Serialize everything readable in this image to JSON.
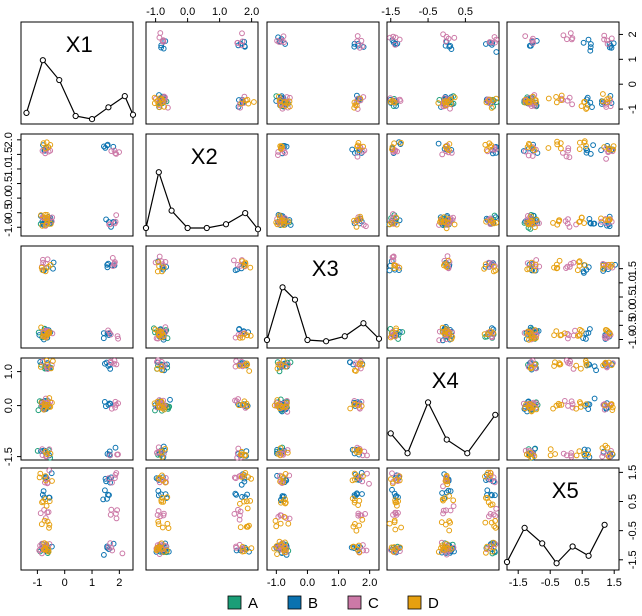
{
  "chart_data": {
    "type": "scatter",
    "layout": "pairs-matrix",
    "variables": [
      "X1",
      "X2",
      "X3",
      "X4",
      "X5"
    ],
    "ranges": {
      "X1": [
        -1.6,
        2.5
      ],
      "X2": [
        -1.3,
        2.2
      ],
      "X3": [
        -1.3,
        2.3
      ],
      "X4": [
        -1.6,
        1.4
      ],
      "X5": [
        -1.85,
        1.65
      ]
    },
    "cluster_centers": {
      "X1": {
        "A": [
          -0.7
        ],
        "B": [
          -0.7,
          1.6
        ],
        "C": [
          -0.7,
          1.8
        ],
        "D": [
          -0.7
        ]
      },
      "X2": {
        "A": [
          -0.8
        ],
        "B": [
          -0.8,
          1.7
        ],
        "C": [
          -0.8,
          1.6
        ],
        "D": [
          -0.8,
          1.8
        ]
      },
      "X3": {
        "A": [
          -0.8
        ],
        "B": [
          -0.8,
          1.6
        ],
        "C": [
          -0.8,
          1.7
        ],
        "D": [
          -0.8,
          1.6
        ]
      },
      "X4": {
        "A": [
          0.0,
          1.2,
          -1.4
        ],
        "B": [
          0.0,
          1.2,
          -1.4
        ],
        "C": [
          0.0,
          1.2,
          -1.4
        ],
        "D": [
          0.0,
          1.2,
          -1.4
        ]
      },
      "X5": {
        "A": [
          -1.1
        ],
        "B": [
          -1.1,
          0.7,
          1.3
        ],
        "C": [
          -1.1,
          0.1,
          1.3
        ],
        "D": [
          -1.1,
          -0.3,
          0.5,
          1.3
        ]
      }
    },
    "densities": {
      "X1": [
        [
          -1.4,
          0.05
        ],
        [
          -0.8,
          0.9
        ],
        [
          -0.2,
          0.58
        ],
        [
          0.4,
          0.0
        ],
        [
          1.0,
          -0.05
        ],
        [
          1.6,
          0.14
        ],
        [
          2.2,
          0.32
        ],
        [
          2.5,
          0.02
        ]
      ],
      "X2": [
        [
          -1.3,
          0.0
        ],
        [
          -0.9,
          0.9
        ],
        [
          -0.5,
          0.28
        ],
        [
          0.0,
          0.0
        ],
        [
          0.6,
          0.0
        ],
        [
          1.2,
          0.06
        ],
        [
          1.8,
          0.24
        ],
        [
          2.2,
          -0.02
        ]
      ],
      "X3": [
        [
          -1.3,
          0.0
        ],
        [
          -0.8,
          0.85
        ],
        [
          -0.4,
          0.65
        ],
        [
          0.0,
          0.0
        ],
        [
          0.6,
          -0.02
        ],
        [
          1.2,
          0.06
        ],
        [
          1.8,
          0.27
        ],
        [
          2.3,
          0.02
        ]
      ],
      "X4": [
        [
          -1.5,
          0.3
        ],
        [
          -1.05,
          -0.02
        ],
        [
          -0.5,
          0.8
        ],
        [
          0.0,
          0.2
        ],
        [
          0.55,
          -0.02
        ],
        [
          1.3,
          0.6
        ]
      ],
      "X5": [
        [
          -1.85,
          0.0
        ],
        [
          -1.3,
          0.55
        ],
        [
          -0.75,
          0.3
        ],
        [
          -0.3,
          -0.02
        ],
        [
          0.2,
          0.25
        ],
        [
          0.7,
          0.1
        ],
        [
          1.2,
          0.6
        ]
      ]
    },
    "top_axis": {
      "1": [
        "-1.0",
        "0.0",
        "1.0",
        "2.0"
      ],
      "3": [
        "-1.5",
        "-0.5",
        "0.5"
      ]
    },
    "right_axis": {
      "0": [
        "-1",
        "0",
        "1",
        "2"
      ],
      "2": [
        "-1.0",
        "-0.5",
        "0.0",
        "0.5",
        "1.0",
        "1.5"
      ],
      "4": [
        "-1.5",
        "-0.5",
        "0.5",
        "1.5"
      ]
    },
    "left_axis": {
      "1": [
        "-1.0",
        "-0.5",
        "0.0",
        "0.5",
        "1.0",
        "1.5",
        "2.0"
      ],
      "3": [
        "-1.5",
        "0.0",
        "1.0"
      ]
    },
    "bottom_axis": {
      "0": [
        "-1",
        "0",
        "1",
        "2"
      ],
      "2": [
        "-1.0",
        "0.0",
        "1.0",
        "2.0"
      ],
      "4": [
        "-1.5",
        "-0.5",
        "0.5",
        "1.5"
      ]
    },
    "tick_values": {
      "-1": -1,
      "0": 0,
      "1": 1,
      "2": 2,
      "-1.0": -1,
      "-0.5": -0.5,
      "0.0": 0,
      "0.5": 0.5,
      "1.0": 1,
      "1.5": 1.5,
      "2.0": 2,
      "-1.5": -1.5
    },
    "grid": false
  },
  "legend": {
    "placement": "bottom",
    "items": [
      {
        "label": "A",
        "color": "#1a9e77"
      },
      {
        "label": "B",
        "color": "#0a72b0"
      },
      {
        "label": "C",
        "color": "#cc79a7"
      },
      {
        "label": "D",
        "color": "#e6a010"
      }
    ]
  }
}
